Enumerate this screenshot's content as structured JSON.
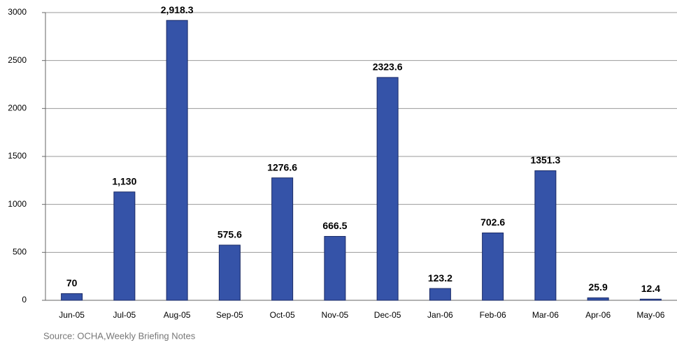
{
  "chart_data": {
    "type": "bar",
    "categories": [
      "Jun-05",
      "Jul-05",
      "Aug-05",
      "Sep-05",
      "Oct-05",
      "Nov-05",
      "Dec-05",
      "Jan-06",
      "Feb-06",
      "Mar-06",
      "Apr-06",
      "May-06"
    ],
    "values": [
      70,
      1130,
      2918.3,
      575.6,
      1276.6,
      666.5,
      2323.6,
      123.2,
      702.6,
      1351.3,
      25.9,
      12.4
    ],
    "value_labels": [
      "70",
      "1,130",
      "2,918.3",
      "575.6",
      "1276.6",
      "666.5",
      "2323.6",
      "123.2",
      "702.6",
      "1351.3",
      "25.9",
      "12.4"
    ],
    "color": "#3553a8",
    "ylim": [
      0,
      3000
    ],
    "yticks": [
      0,
      500,
      1000,
      1500,
      2000,
      2500,
      3000
    ],
    "grid": true,
    "source": "Source: OCHA,Weekly Briefing Notes"
  }
}
